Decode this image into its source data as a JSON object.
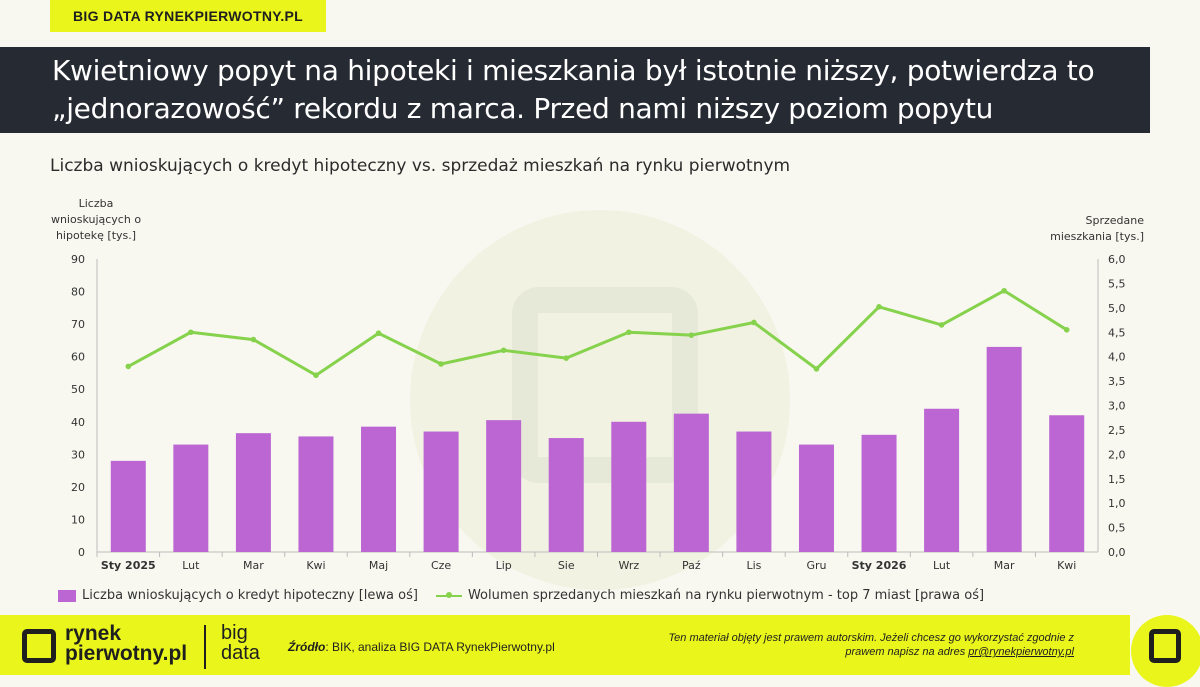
{
  "header": {
    "brand_tag": "BIG DATA RYNEKPIERWOTNY.PL",
    "title": "Kwietniowy popyt na hipoteki i mieszkania był istotnie niższy, potwierdza to „jednorazowość” rekordu z marca. Przed nami niższy poziom popytu"
  },
  "chart_data": {
    "type": "bar",
    "subtitle": "Liczba wnioskujących o kredyt hipoteczny vs. sprzedaż mieszkań na rynku pierwotnym",
    "categories": [
      "Sty 2025",
      "Lut",
      "Mar",
      "Kwi",
      "Maj",
      "Cze",
      "Lip",
      "Sie",
      "Wrz",
      "Paź",
      "Lis",
      "Gru",
      "Sty 2026",
      "Lut",
      "Mar",
      "Kwi"
    ],
    "bold_categories": [
      0,
      12
    ],
    "ylabel_left": "Liczba wnioskujących o hipotekę [tys.]",
    "ylabel_right": "Sprzedane mieszkania [tys.]",
    "ylim_left": [
      0,
      90
    ],
    "yticks_left": [
      "0",
      "10",
      "20",
      "30",
      "40",
      "50",
      "60",
      "70",
      "80",
      "90"
    ],
    "ylim_right": [
      0,
      6
    ],
    "yticks_right": [
      "0,0",
      "0,5",
      "1,0",
      "1,5",
      "2,0",
      "2,5",
      "3,0",
      "3,5",
      "4,0",
      "4,5",
      "5,0",
      "5,5",
      "6,0"
    ],
    "grid": false,
    "legend_position": "bottom-left",
    "series": [
      {
        "name": "Liczba wnioskujących o kredyt hipoteczny [lewa oś]",
        "type": "bar",
        "axis": "left",
        "color": "#bb66d3",
        "values": [
          28,
          33,
          36.5,
          35.5,
          38.5,
          37,
          40.5,
          35,
          40,
          42.5,
          37,
          33,
          36,
          44,
          63,
          42
        ]
      },
      {
        "name": "Wolumen sprzedanych mieszkań na rynku pierwotnym - top 7 miast [prawa oś]",
        "type": "line",
        "axis": "right",
        "color": "#86d24c",
        "values": [
          3.8,
          4.5,
          4.35,
          3.62,
          4.48,
          3.85,
          4.13,
          3.97,
          4.5,
          4.44,
          4.7,
          3.75,
          5.02,
          4.65,
          5.35,
          4.55
        ]
      }
    ]
  },
  "footer": {
    "logo_line1": "rynek",
    "logo_line2": "pierwotny.pl",
    "bigdata_line1": "big",
    "bigdata_line2": "data",
    "source_label": "Źródło",
    "source_text": ": BIK, analiza BIG DATA RynekPierwotny.pl",
    "copyright_text": "Ten materiał objęty jest prawem autorskim. Jeżeli chcesz go wykorzystać zgodnie z prawem napisz na adres ",
    "copyright_email": "pr@rynekpierwotny.pl"
  },
  "colors": {
    "accent": "#e9f51b",
    "dark": "#262a33",
    "bar": "#bb66d3",
    "line": "#86d24c"
  }
}
